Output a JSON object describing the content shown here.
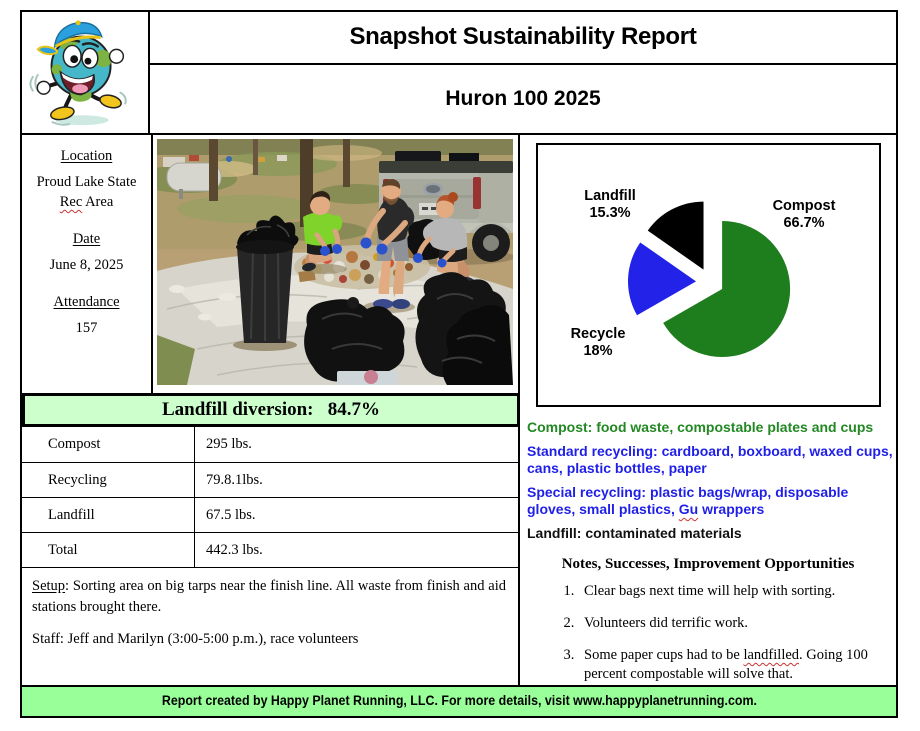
{
  "header": {
    "title": "Snapshot Sustainability Report",
    "subtitle": "Huron 100 2025"
  },
  "info": {
    "location_label": "Location",
    "location_line1": "Proud Lake State",
    "location_sq": "Rec",
    "location_line2_rest": " Area",
    "date_label": "Date",
    "date_value": "June 8, 2025",
    "attendance_label": "Attendance",
    "attendance_value": "157"
  },
  "chart_data": {
    "type": "pie",
    "labels": [
      "Compost",
      "Recycle",
      "Landfill"
    ],
    "values": [
      66.7,
      18,
      15.3
    ],
    "colors": [
      "#1e7e1e",
      "#2222e8",
      "#000000"
    ],
    "exploded": true,
    "legend_position": "labels-outside",
    "label_lines": {
      "compost": [
        "Compost",
        "66.7%"
      ],
      "recycle": [
        "Recycle",
        "18%"
      ],
      "landfill": [
        "Landfill",
        "15.3%"
      ]
    }
  },
  "banner": {
    "text": "Landfill diversion:   84.7%",
    "bg_color": "#ccffcc"
  },
  "weights_table": {
    "rows": [
      {
        "label": "Compost",
        "value": "295 lbs."
      },
      {
        "label": "Recycling",
        "value": "79.8.1lbs."
      },
      {
        "label": "Landfill",
        "value": "67.5 lbs."
      },
      {
        "label": "Total",
        "value": "442.3 lbs."
      }
    ]
  },
  "setup": {
    "setup_label": "Setup",
    "setup_rest": ": Sorting area on big tarps near the finish line. All waste from finish and aid stations brought there.",
    "staff_line": "Staff: Jeff and Marilyn (3:00-5:00 p.m.), race volunteers"
  },
  "categories": {
    "compost": "Compost: food waste, compostable plates and cups",
    "compost_color": "#238823",
    "standard": "Standard recycling: cardboard, boxboard, waxed cups, cans, plastic bottles, paper",
    "special_pre": "Special recycling: plastic bags/wrap, disposable gloves, small plastics, ",
    "special_sq": "Gu",
    "special_post": " wrappers",
    "recycle_color": "#1f1fe8",
    "landfill": "Landfill: contaminated materials",
    "landfill_color": "#111111"
  },
  "notes": {
    "heading": "Notes, Successes, Improvement Opportunities",
    "item1": "Clear bags next time will help with sorting.",
    "item2": "Volunteers did terrific work.",
    "item3_pre": "Some paper cups had to be ",
    "item3_sq": "landfilled",
    "item3_post": ". Going 100 percent compostable will solve that."
  },
  "footer": {
    "text": "Report created by Happy Planet Running, LLC. For more details, visit www.happyplanetrunning.com.",
    "bg_color": "#99ff99"
  }
}
